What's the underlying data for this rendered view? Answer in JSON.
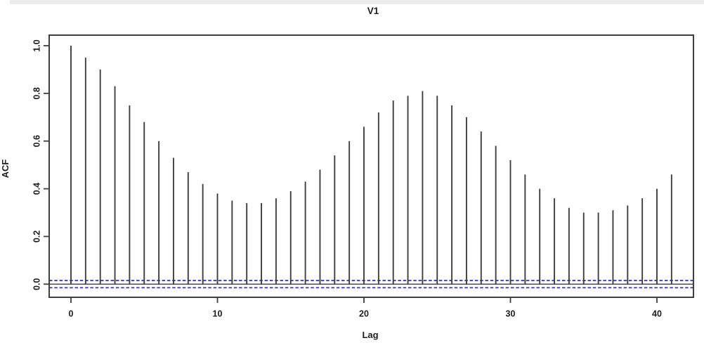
{
  "figure": {
    "title": "V1",
    "xlabel": "Lag",
    "ylabel": "ACF"
  },
  "chart_data": {
    "type": "bar",
    "subtype": "acf-stem-plot",
    "title": "V1",
    "xlabel": "Lag",
    "ylabel": "ACF",
    "lags": [
      0,
      1,
      2,
      3,
      4,
      5,
      6,
      7,
      8,
      9,
      10,
      11,
      12,
      13,
      14,
      15,
      16,
      17,
      18,
      19,
      20,
      21,
      22,
      23,
      24,
      25,
      26,
      27,
      28,
      29,
      30,
      31,
      32,
      33,
      34,
      35,
      36,
      37,
      38,
      39,
      40,
      41
    ],
    "values": [
      1.0,
      0.95,
      0.9,
      0.83,
      0.75,
      0.68,
      0.6,
      0.53,
      0.47,
      0.42,
      0.38,
      0.35,
      0.34,
      0.34,
      0.36,
      0.39,
      0.43,
      0.48,
      0.54,
      0.6,
      0.66,
      0.72,
      0.77,
      0.79,
      0.81,
      0.79,
      0.75,
      0.7,
      0.64,
      0.58,
      0.52,
      0.46,
      0.4,
      0.36,
      0.32,
      0.3,
      0.3,
      0.31,
      0.33,
      0.36,
      0.4,
      0.46
    ],
    "confidence_bounds": {
      "upper": 0.015,
      "lower": -0.015
    },
    "zero_line": 0,
    "xticks": [
      {
        "value": 0,
        "label": "0"
      },
      {
        "value": 10,
        "label": "10"
      },
      {
        "value": 20,
        "label": "20"
      },
      {
        "value": 30,
        "label": "30"
      },
      {
        "value": 40,
        "label": "40"
      }
    ],
    "yticks": [
      {
        "value": 0.0,
        "label": "0.0"
      },
      {
        "value": 0.2,
        "label": "0.2"
      },
      {
        "value": 0.4,
        "label": "0.4"
      },
      {
        "value": 0.6,
        "label": "0.6"
      },
      {
        "value": 0.8,
        "label": "0.8"
      },
      {
        "value": 1.0,
        "label": "1.0"
      }
    ],
    "xlim": [
      -1.55,
      42.5
    ],
    "ylim": [
      -0.055,
      1.045
    ],
    "grid": false,
    "legend": null,
    "colors": {
      "stem": "#3f3f3f",
      "axis": "#3f3f3f",
      "confidence": "#3434cf",
      "text": "#1c1c1c"
    }
  }
}
